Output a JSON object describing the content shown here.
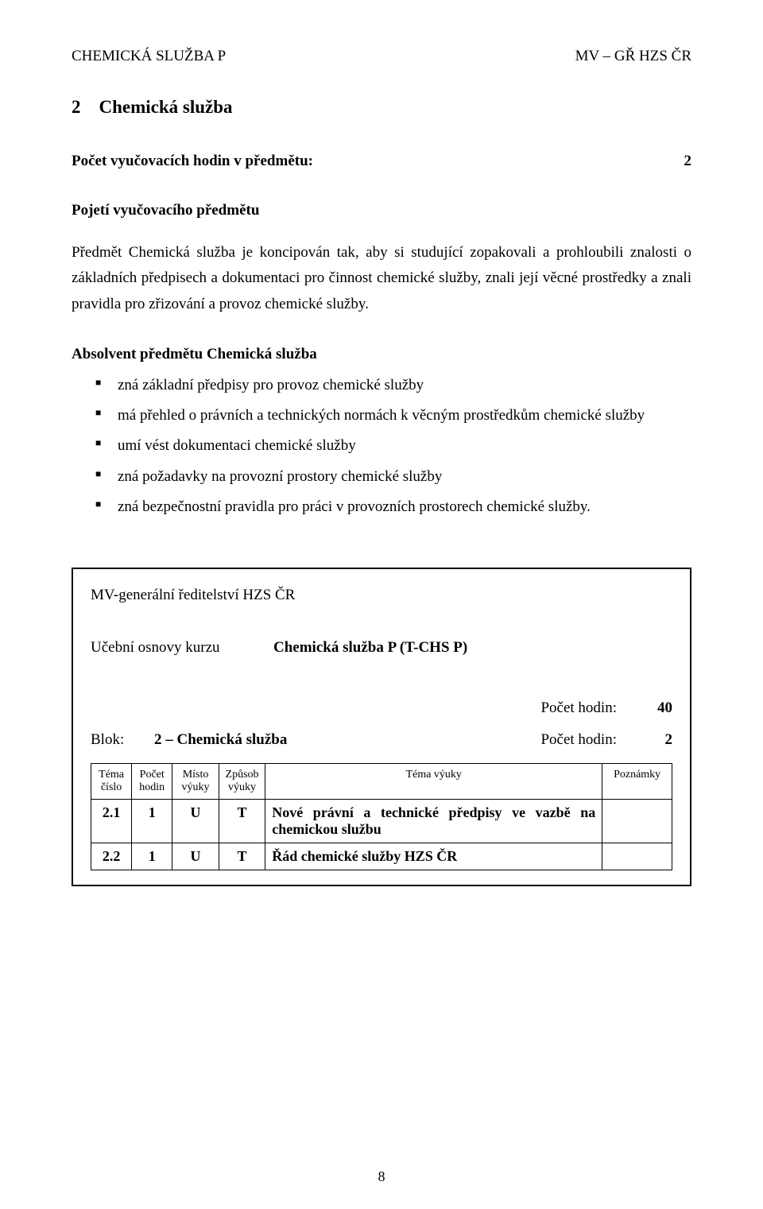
{
  "header": {
    "left": "CHEMICKÁ SLUŽBA P",
    "right": "MV – GŘ HZS ČR"
  },
  "section": {
    "number": "2",
    "title": "Chemická služba"
  },
  "hours_label": "Počet vyučovacích hodin v předmětu:",
  "hours_value": "2",
  "subheading": "Pojetí vyučovacího předmětu",
  "paragraph": "Předmět Chemická služba je koncipován tak, aby si studující zopakovali a prohloubili znalosti o základních předpisech a dokumentaci pro činnost chemické služby, znali její věcné prostředky a znali pravidla pro zřizování a provoz chemické služby.",
  "absolvent_heading": "Absolvent předmětu Chemická služba",
  "bullets": [
    "zná základní předpisy pro provoz chemické služby",
    "má přehled o právních a technických normách k věcným prostředkům chemické služby",
    "umí vést dokumentaci chemické služby",
    "zná požadavky na provozní prostory chemické služby",
    "zná bezpečnostní pravidla pro práci v provozních prostorech chemické služby."
  ],
  "box": {
    "org": "MV-generální ředitelství HZS ČR",
    "osnovy_label": "Učební osnovy kurzu",
    "osnovy_value": "Chemická služba P (T-CHS P)",
    "total_hours_label": "Počet hodin:",
    "total_hours_value": "40",
    "blok_label": "Blok:",
    "blok_value": "2 – Chemická služba",
    "blok_hours_label": "Počet hodin:",
    "blok_hours_value": "2",
    "table": {
      "headers": [
        "Téma číslo",
        "Počet hodin",
        "Místo výuky",
        "Způsob výuky",
        "Téma výuky",
        "Poznámky"
      ],
      "rows": [
        {
          "cislo": "2.1",
          "hodin": "1",
          "misto": "U",
          "zpusob": "T",
          "tema": "Nové právní a technické předpisy ve vazbě na chemickou službu",
          "pozn": ""
        },
        {
          "cislo": "2.2",
          "hodin": "1",
          "misto": "U",
          "zpusob": "T",
          "tema": "Řád chemické služby HZS ČR",
          "pozn": ""
        }
      ]
    }
  },
  "page_number": "8",
  "colors": {
    "text": "#000000",
    "bg": "#ffffff",
    "border": "#000000"
  }
}
